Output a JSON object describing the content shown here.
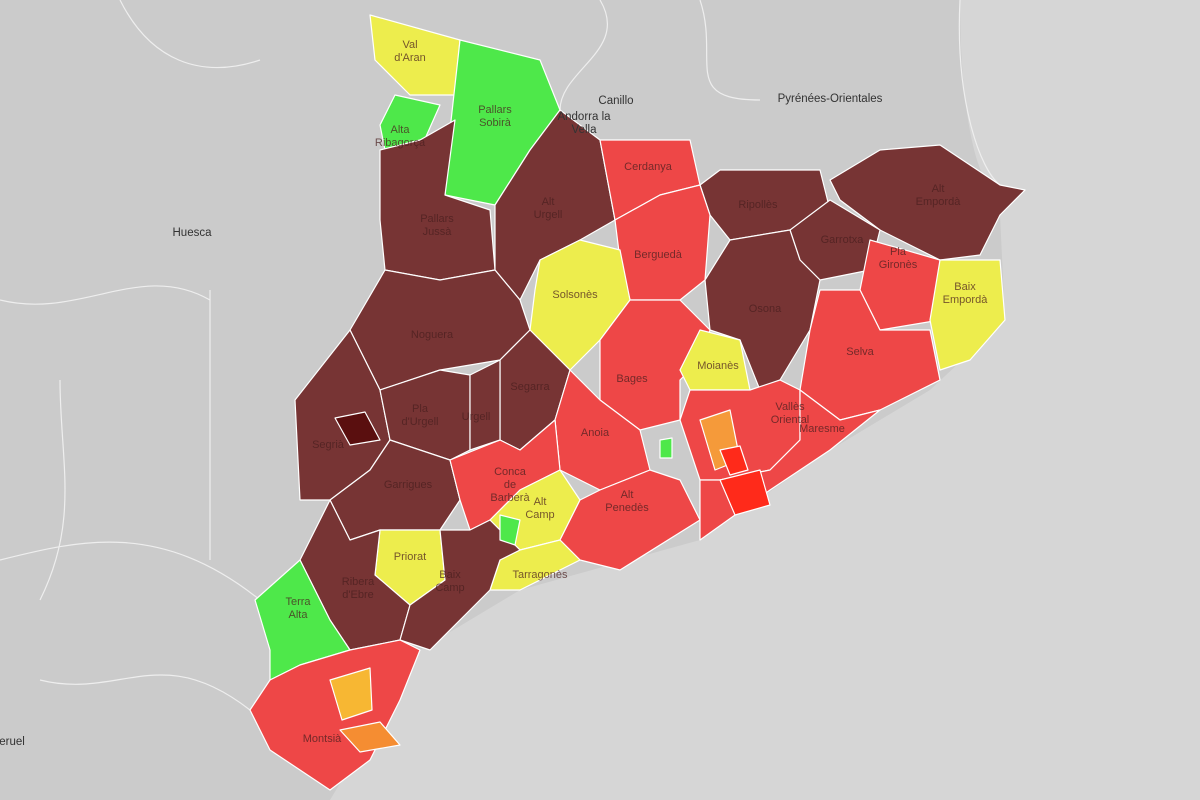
{
  "places": [
    {
      "label": [
        "Canillo"
      ]
    },
    {
      "label": [
        "Andorra la",
        "Vella"
      ]
    },
    {
      "label": [
        "Pyrénées-Orientales"
      ]
    },
    {
      "label": [
        "Huesca"
      ]
    },
    {
      "label": [
        "eruel"
      ]
    }
  ],
  "regions": [
    {
      "label": [
        "Val",
        "d'Aran"
      ],
      "color": "#eded4d"
    },
    {
      "label": [
        "Alta",
        "Ribagorça"
      ],
      "color": "#4ee84a"
    },
    {
      "label": [
        "Pallars",
        "Sobirà"
      ],
      "color": "#4ee84a"
    },
    {
      "label": [
        "Pallars",
        "Jussà"
      ],
      "color": "#773434"
    },
    {
      "label": [
        "Alt",
        "Urgell"
      ],
      "color": "#773434"
    },
    {
      "label": [
        "Cerdanya"
      ],
      "color": "#ee4747"
    },
    {
      "label": [
        "Ripollès"
      ],
      "color": "#773434"
    },
    {
      "label": [
        "Alt",
        "Empordà"
      ],
      "color": "#773434"
    },
    {
      "label": [
        "Garrotxa"
      ],
      "color": "#773434"
    },
    {
      "label": [
        "Pla",
        "Gironès"
      ],
      "color": "#ee4747"
    },
    {
      "label": [
        "Baix",
        "Empordà"
      ],
      "color": "#eded4d"
    },
    {
      "label": [
        "Berguedà"
      ],
      "color": "#ee4747"
    },
    {
      "label": [
        "Solsonès"
      ],
      "color": "#eded4d"
    },
    {
      "label": [
        "Osona"
      ],
      "color": "#773434"
    },
    {
      "label": [
        "Selva"
      ],
      "color": "#ee4747"
    },
    {
      "label": [
        "Noguera"
      ],
      "color": "#773434"
    },
    {
      "label": [
        "Segrià"
      ],
      "color": "#773434"
    },
    {
      "label": [
        "Pla",
        "d'Urgell"
      ],
      "color": "#773434"
    },
    {
      "label": [
        "Segarra"
      ],
      "color": "#773434"
    },
    {
      "label": [
        "Garrigues"
      ],
      "color": "#773434"
    },
    {
      "label": [
        "Bages"
      ],
      "color": "#ee4747"
    },
    {
      "label": [
        "Moianès"
      ],
      "color": "#eded4d"
    },
    {
      "label": [
        "Anoia"
      ],
      "color": "#ee4747"
    },
    {
      "label": [
        "Vallès",
        "Oriental"
      ],
      "color": "#ee4747"
    },
    {
      "label": [
        "Conca",
        "de",
        "Barberà"
      ],
      "color": "#ee4747"
    },
    {
      "label": [
        "Alt",
        "Camp"
      ],
      "color": "#eded4d"
    },
    {
      "label": [
        "Alt",
        "Penedès"
      ],
      "color": "#ee4747"
    },
    {
      "label": [
        "Tarragonès"
      ],
      "color": "#eded4d"
    },
    {
      "label": [
        "Priorat"
      ],
      "color": "#eded4d"
    },
    {
      "label": [
        "Ribera",
        "d'Ebre"
      ],
      "color": "#773434"
    },
    {
      "label": [
        "Baix",
        "Camp"
      ],
      "color": "#773434"
    },
    {
      "label": [
        "Terra",
        "Alta"
      ],
      "color": "#4ee84a"
    },
    {
      "label": [
        "Montsià"
      ],
      "color": "#ee4747"
    },
    {
      "label": [
        "Maresme"
      ],
      "color": "#ee4747"
    },
    {
      "label": [
        "Urgell"
      ],
      "color": "#773434"
    }
  ]
}
